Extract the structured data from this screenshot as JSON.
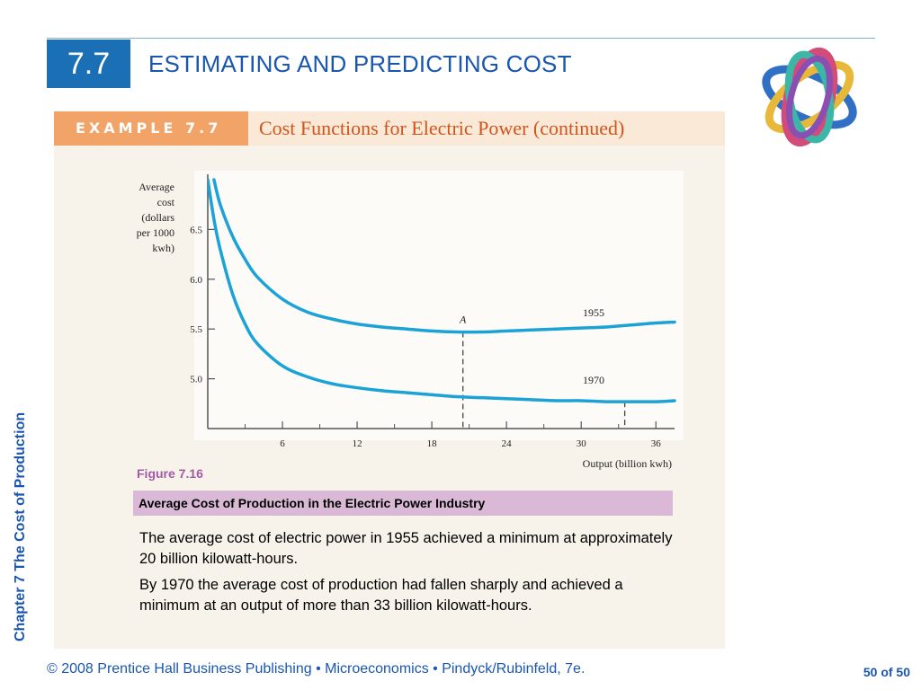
{
  "header": {
    "section_number": "7.7",
    "title": "ESTIMATING AND PREDICTING COST"
  },
  "example": {
    "label": "EXAMPLE 7.7",
    "title": "Cost Functions for Electric Power (continued)"
  },
  "sidebar": {
    "chapter_label": "Chapter 7  The Cost of Production"
  },
  "figure": {
    "number": "Figure 7.16",
    "caption": "Average Cost of Production in the Electric Power Industry",
    "paragraphs": [
      "The average cost of electric power in 1955 achieved a minimum at approximately 20 billion kilowatt-hours.",
      "By 1970 the average cost of production had fallen sharply and achieved a minimum at an output of more than 33 billion kilowatt-hours."
    ]
  },
  "footer": {
    "text": "© 2008 Prentice Hall Business Publishing  •  Microeconomics  •  Pindyck/Rubinfeld, 7e.",
    "page": "50 of 50"
  },
  "colors": {
    "accent": "#1a6fb5",
    "curve": "#1ba3d8",
    "banner": "#f2a468",
    "caption_bg": "#d9b9d6"
  },
  "chart_data": {
    "type": "line",
    "xlabel": "Output (billion kwh)",
    "ylabel_lines": [
      "Average",
      "cost",
      "(dollars",
      "per 1000",
      "kwh)"
    ],
    "xticks": [
      6,
      12,
      18,
      24,
      30,
      36
    ],
    "yticks": [
      5.0,
      5.5,
      6.0,
      6.5
    ],
    "xlim": [
      0,
      37.5
    ],
    "ylim": [
      4.5,
      7.0
    ],
    "series": [
      {
        "name": "1955",
        "x": [
          0.5,
          1,
          2,
          3,
          4,
          6,
          8,
          10,
          12,
          14,
          16,
          18,
          20,
          22,
          24,
          26,
          28,
          30,
          32,
          34,
          36,
          37.5
        ],
        "y": [
          7.0,
          6.75,
          6.43,
          6.2,
          6.02,
          5.8,
          5.67,
          5.6,
          5.55,
          5.52,
          5.5,
          5.48,
          5.47,
          5.47,
          5.48,
          5.49,
          5.5,
          5.51,
          5.52,
          5.54,
          5.56,
          5.57
        ]
      },
      {
        "name": "1970",
        "x": [
          0,
          0.5,
          1,
          2,
          3,
          4,
          6,
          8,
          10,
          12,
          14,
          16,
          18,
          20,
          22,
          24,
          26,
          28,
          30,
          32,
          34,
          36,
          37.5
        ],
        "y": [
          7.0,
          6.6,
          6.3,
          5.85,
          5.55,
          5.35,
          5.13,
          5.02,
          4.95,
          4.91,
          4.88,
          4.86,
          4.84,
          4.82,
          4.81,
          4.8,
          4.79,
          4.78,
          4.78,
          4.77,
          4.77,
          4.77,
          4.78
        ]
      }
    ],
    "point_annotation": {
      "label": "A",
      "x": 20.5,
      "y": 5.47
    },
    "vertical_marks": [
      20.5,
      33.5
    ]
  }
}
